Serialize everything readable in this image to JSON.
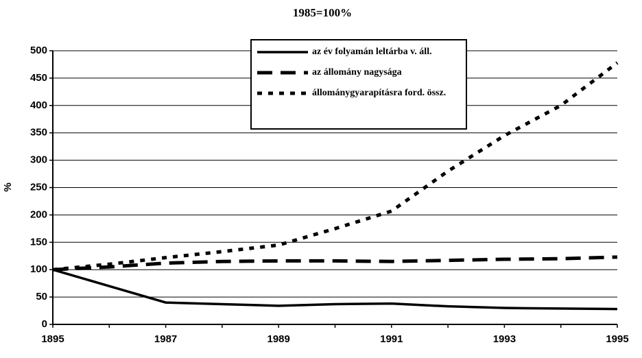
{
  "chart_data": {
    "type": "line",
    "title": "1985=100%",
    "y_label": "%",
    "categories": [
      "1895",
      null,
      "1987",
      null,
      "1989",
      null,
      "1991",
      null,
      "1993",
      null,
      "1995"
    ],
    "series": [
      {
        "name": "az év folyamán leltárba v. áll.",
        "color": "#000000",
        "style": "solid",
        "values": [
          100,
          70,
          40,
          37,
          34,
          37,
          38,
          33,
          30,
          29,
          28
        ]
      },
      {
        "name": "az állomány nagysága",
        "color": "#000000",
        "style": "dashed",
        "values": [
          100,
          105,
          112,
          115,
          116,
          116,
          115,
          117,
          119,
          120,
          123
        ]
      },
      {
        "name": "állománygyarapításra ford. össz.",
        "color": "#000000",
        "style": "dotted",
        "values": [
          100,
          110,
          122,
          133,
          145,
          175,
          207,
          280,
          345,
          400,
          478
        ]
      }
    ],
    "ylim": [
      0,
      500
    ],
    "yticks": [
      0,
      50,
      100,
      150,
      200,
      250,
      300,
      350,
      400,
      450,
      500
    ],
    "grid": true
  }
}
